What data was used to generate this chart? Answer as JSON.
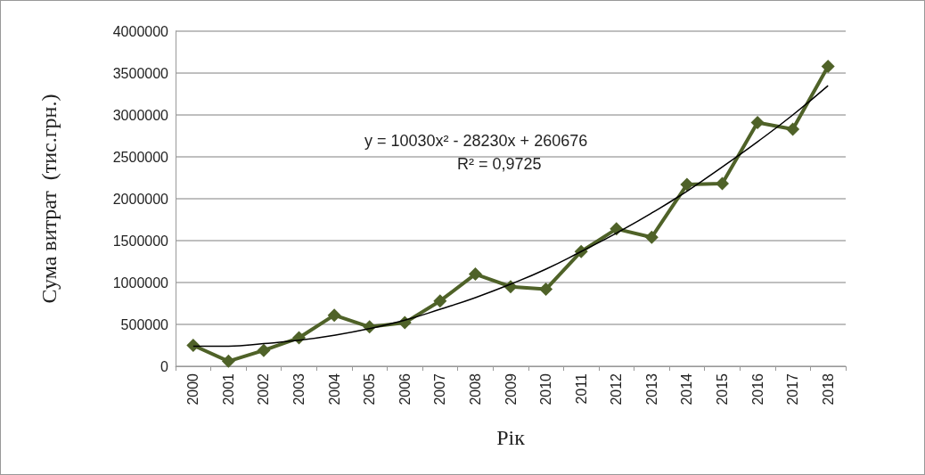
{
  "chart_data": {
    "type": "line",
    "xlabel": "Рік",
    "ylabel": "Сума витрат  (тис.грн.)",
    "categories": [
      "2000",
      "2001",
      "2002",
      "2003",
      "2004",
      "2005",
      "2006",
      "2007",
      "2008",
      "2009",
      "2010",
      "2011",
      "2012",
      "2013",
      "2014",
      "2015",
      "2016",
      "2017",
      "2018"
    ],
    "series": [
      {
        "color": "#4f6228",
        "marker": "diamond",
        "values": [
          250000,
          60000,
          190000,
          340000,
          610000,
          470000,
          520000,
          780000,
          1100000,
          950000,
          920000,
          1370000,
          1640000,
          1540000,
          2170000,
          2180000,
          2910000,
          2830000,
          3580000
        ]
      },
      {
        "color": "#000000",
        "marker": "none",
        "values": [
          240000,
          240000,
          270000,
          310000,
          370000,
          450000,
          550000,
          680000,
          820000,
          980000,
          1160000,
          1370000,
          1590000,
          1830000,
          2090000,
          2380000,
          2680000,
          3000000,
          3350000
        ]
      }
    ],
    "ylim": [
      0,
      4000000
    ],
    "yticks": [
      0,
      500000,
      1000000,
      1500000,
      2000000,
      2500000,
      3000000,
      3500000,
      4000000
    ],
    "grid": "y",
    "annotations": [
      "y = 10030x² - 28230x + 260676",
      "R² = 0,9725"
    ]
  }
}
